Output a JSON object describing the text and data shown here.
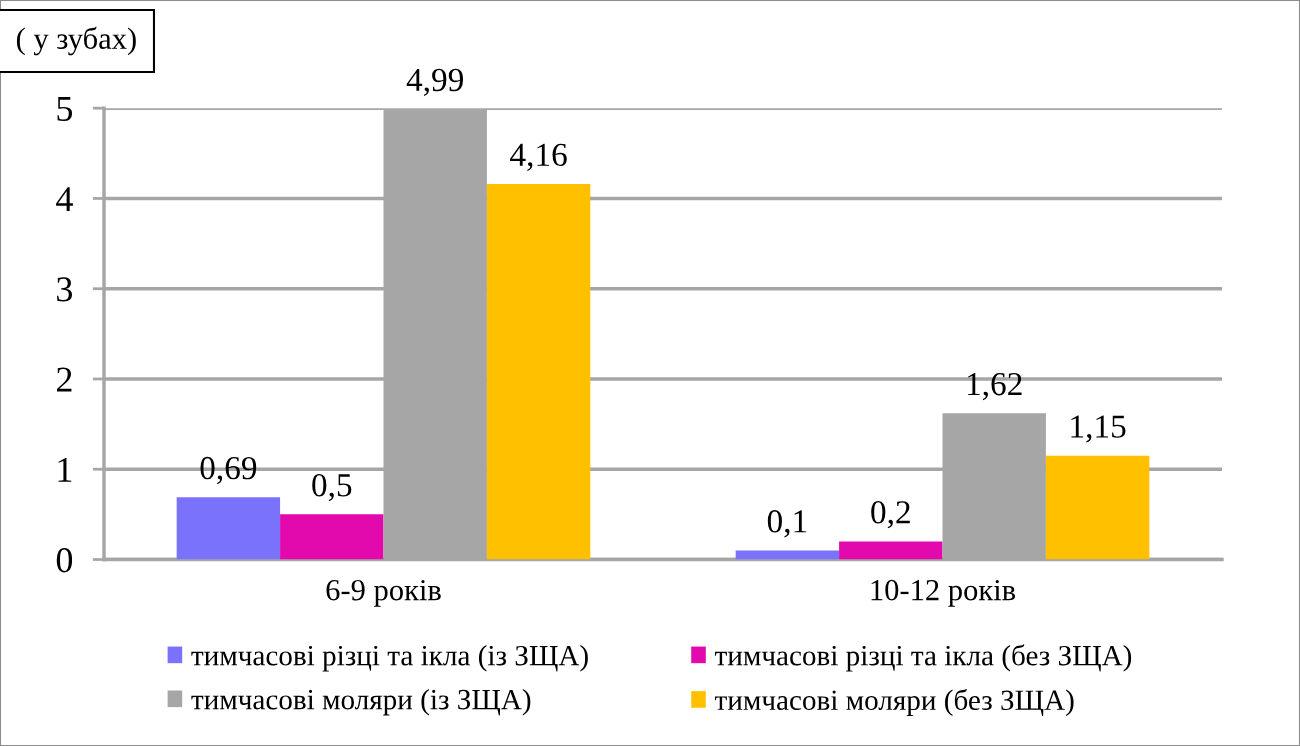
{
  "chart_data": {
    "type": "bar",
    "ylabel": "( у зубах)",
    "categories": [
      "6-9 років",
      "10-12 років"
    ],
    "series": [
      {
        "name": "тимчасові різці та ікла (із ЗЩА)",
        "color": "#7b72fc",
        "values": [
          0.69,
          0.1
        ],
        "value_labels": [
          "0,69",
          "0,1"
        ]
      },
      {
        "name": "тимчасові різці та ікла (без ЗЩА)",
        "color": "#e20aad",
        "values": [
          0.5,
          0.2
        ],
        "value_labels": [
          "0,5",
          "0,2"
        ]
      },
      {
        "name": "тимчасові моляри (із ЗЩА)",
        "color": "#a6a6a6",
        "values": [
          4.99,
          1.62
        ],
        "value_labels": [
          "4,99",
          "1,62"
        ]
      },
      {
        "name": "тимчасові моляри (без ЗЩА)",
        "color": "#ffc000",
        "values": [
          4.16,
          1.15
        ],
        "value_labels": [
          "4,16",
          "1,15"
        ]
      }
    ],
    "ylim": [
      0,
      5
    ],
    "yticks": [
      0,
      1,
      2,
      3,
      4,
      5
    ],
    "grid": "y",
    "legend": "bottom"
  }
}
